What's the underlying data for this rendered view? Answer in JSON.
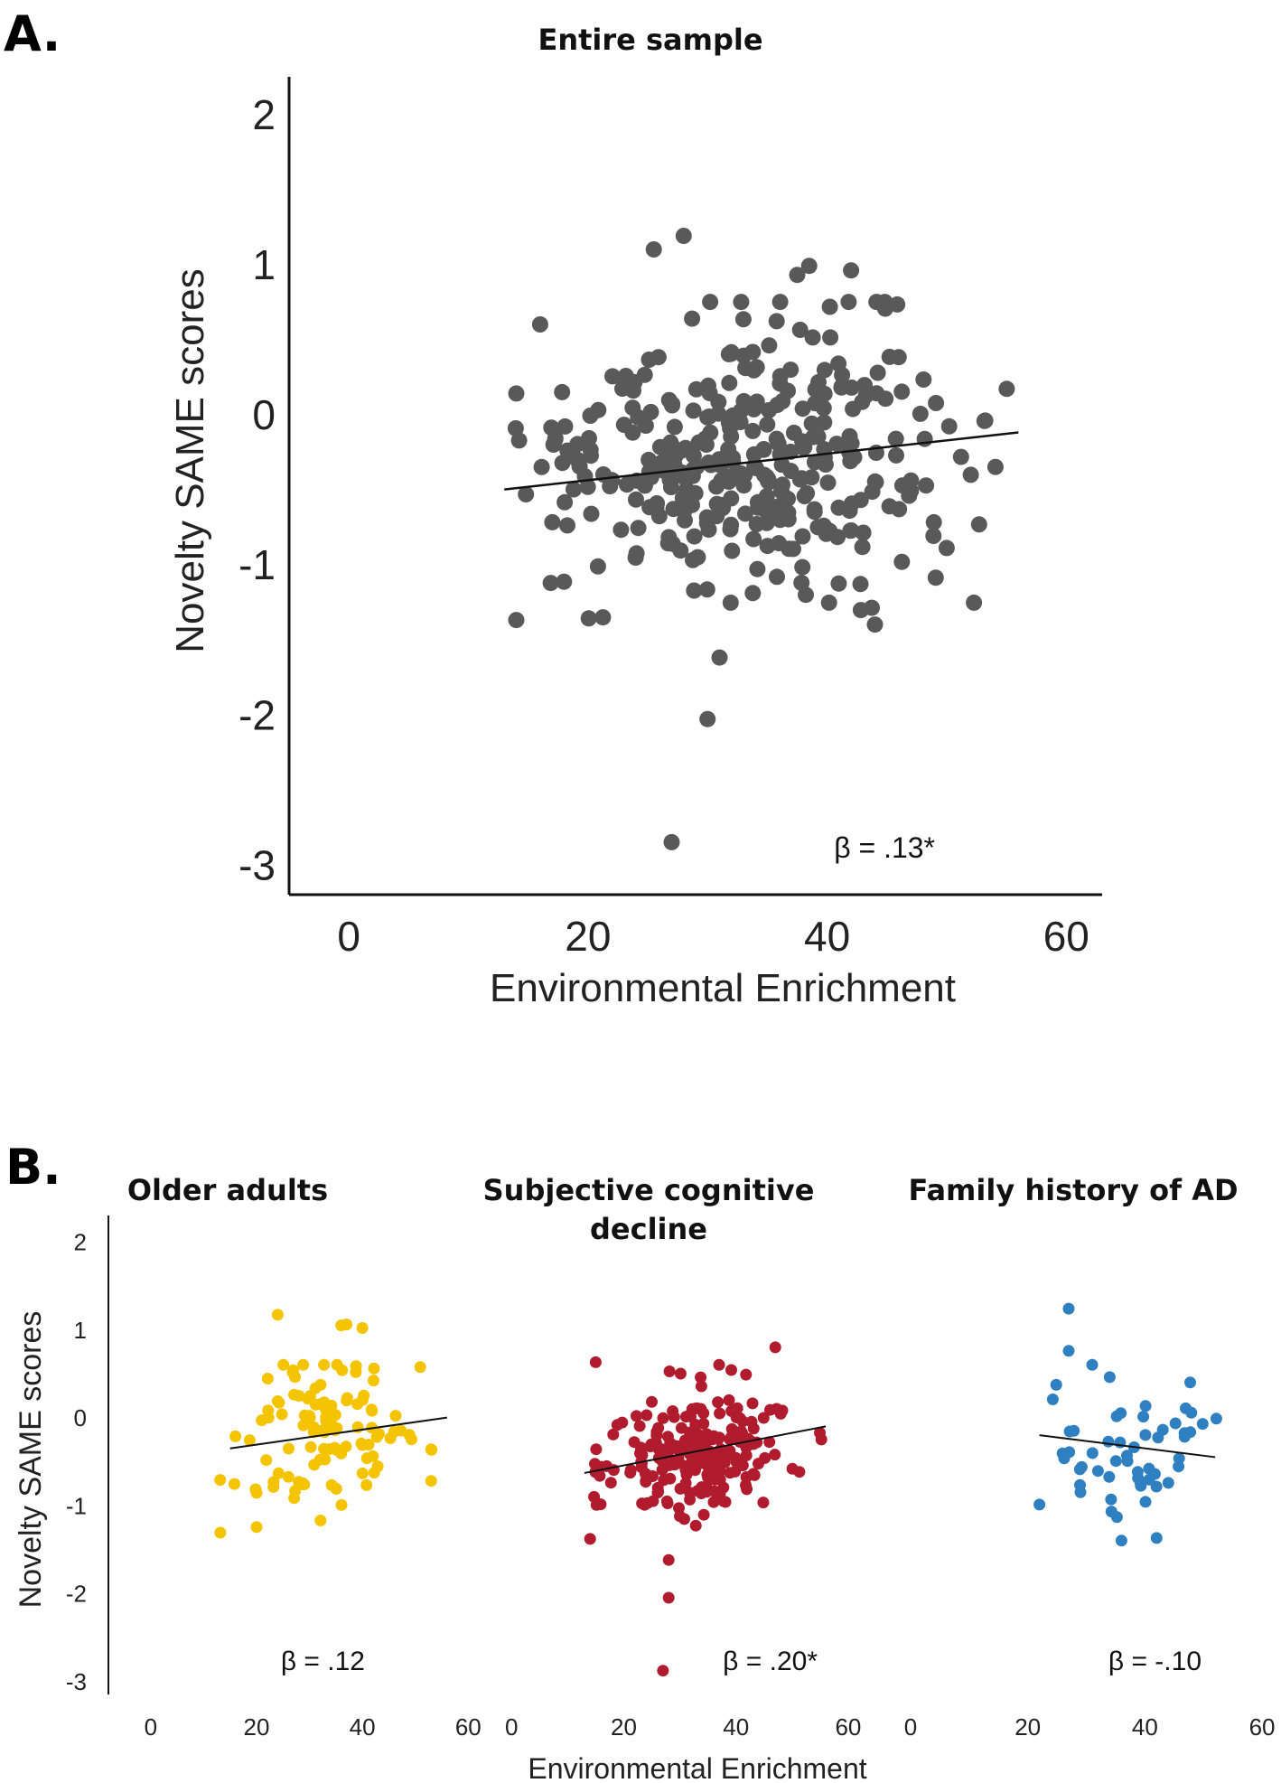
{
  "figure": {
    "panel_a_label": "A.",
    "panel_b_label": "B."
  },
  "chart_data": [
    {
      "id": "A",
      "type": "scatter",
      "title": "Entire sample",
      "xlabel": "Environmental Enrichment",
      "ylabel": "Novelty SAME scores",
      "xlim": [
        -5,
        63
      ],
      "ylim": [
        -3.2,
        2.25
      ],
      "xticks": [
        0,
        20,
        40,
        60
      ],
      "yticks": [
        2,
        1,
        0,
        -1,
        -2,
        -3
      ],
      "annotation": "β = .13*",
      "point_color": "#595959",
      "fit_line": {
        "x": [
          13,
          56
        ],
        "y": [
          -0.5,
          -0.12
        ]
      },
      "n_points": 330
    },
    {
      "id": "B1",
      "type": "scatter",
      "title": "Older adults",
      "xlabel": "",
      "ylabel": "Novelty SAME scores",
      "xlim": [
        -8,
        62
      ],
      "ylim": [
        -3.15,
        2.3
      ],
      "xticks": [
        0,
        20,
        40,
        60
      ],
      "yticks": [
        2,
        1,
        0,
        -1,
        -2,
        -3
      ],
      "annotation": "β = .12",
      "point_color": "#f5c400",
      "fit_line": {
        "x": [
          15,
          56
        ],
        "y": [
          -0.35,
          0.0
        ]
      },
      "n_points": 110
    },
    {
      "id": "B2",
      "type": "scatter",
      "title": "Subjective cognitive decline",
      "xlabel": "Environmental Enrichment",
      "ylabel": "",
      "xlim": [
        -1,
        65
      ],
      "ylim": [
        -3.15,
        2.3
      ],
      "xticks": [
        0,
        20,
        40,
        60
      ],
      "yticks": [],
      "annotation": "β = .20*",
      "point_color": "#b01b2e",
      "fit_line": {
        "x": [
          13,
          56
        ],
        "y": [
          -0.63,
          -0.1
        ]
      },
      "n_points": 210
    },
    {
      "id": "B3",
      "type": "scatter",
      "title": "Family history of AD",
      "xlabel": "",
      "ylabel": "",
      "xlim": [
        -2,
        62
      ],
      "ylim": [
        -3.15,
        2.3
      ],
      "xticks": [
        0,
        20,
        40,
        60
      ],
      "yticks": [],
      "annotation": "β = -.10",
      "point_color": "#2f80c0",
      "fit_line": {
        "x": [
          22,
          52
        ],
        "y": [
          -0.2,
          -0.45
        ]
      },
      "n_points": 50
    }
  ]
}
